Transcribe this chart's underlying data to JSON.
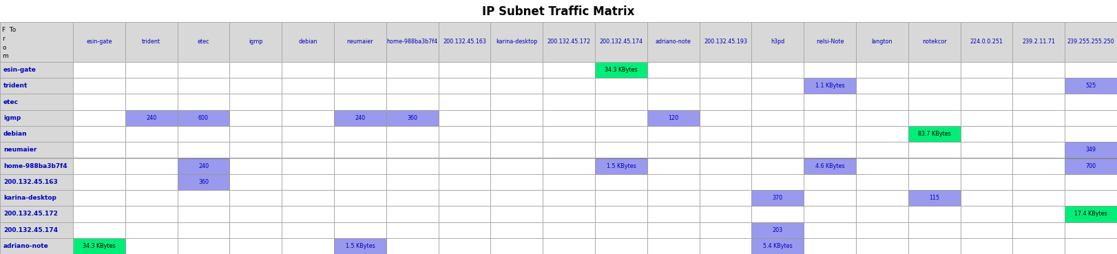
{
  "title": "IP Subnet Traffic Matrix",
  "title_fontsize": 12,
  "col_headers": [
    "esin-gate",
    "trident",
    "etec",
    "igmp",
    "debian",
    "neumaier",
    "home-988ba3b7f4",
    "200.132.45.163",
    "karina-desktop",
    "200.132.45.172",
    "200.132.45.174",
    "adriano-note",
    "200.132.45.193",
    "h3pd",
    "nelsi-Note",
    "langton",
    "notekcor",
    "224.0.0.251",
    "239.2.11.71",
    "239.255.255.250"
  ],
  "row_headers": [
    "esin-gate",
    "trident",
    "etec",
    "igmp",
    "debian",
    "neumaier",
    "home-988ba3b7f4",
    "200.132.45.163",
    "karina-desktop",
    "200.132.45.172",
    "200.132.45.174",
    "adriano-note"
  ],
  "cells": {
    "esin-gate": {
      "200.132.45.174": {
        "text": "34.3 KBytes",
        "color": "#00ee77"
      }
    },
    "trident": {
      "nelsi-Note": {
        "text": "1.1 KBytes",
        "color": "#9999ee"
      },
      "239.255.255.250": {
        "text": "525",
        "color": "#9999ee"
      }
    },
    "etec": {},
    "igmp": {
      "trident": {
        "text": "240",
        "color": "#9999ee"
      },
      "etec": {
        "text": "600",
        "color": "#9999ee"
      },
      "neumaier": {
        "text": "240",
        "color": "#9999ee"
      },
      "home-988ba3b7f4": {
        "text": "360",
        "color": "#9999ee"
      },
      "adriano-note": {
        "text": "120",
        "color": "#9999ee"
      }
    },
    "debian": {
      "notekcor": {
        "text": "83.7 KBytes",
        "color": "#00ee77"
      }
    },
    "neumaier": {
      "239.255.255.250": {
        "text": "349",
        "color": "#9999ee"
      }
    },
    "home-988ba3b7f4": {
      "etec": {
        "text": "240",
        "color": "#9999ee"
      },
      "200.132.45.174": {
        "text": "1.5 KBytes",
        "color": "#9999ee"
      },
      "nelsi-Note": {
        "text": "4.6 KBytes",
        "color": "#9999ee"
      },
      "239.255.255.250": {
        "text": "700",
        "color": "#9999ee"
      }
    },
    "200.132.45.163": {
      "etec": {
        "text": "360",
        "color": "#9999ee"
      }
    },
    "karina-desktop": {
      "h3pd": {
        "text": "370",
        "color": "#9999ee"
      },
      "notekcor": {
        "text": "115",
        "color": "#9999ee"
      }
    },
    "200.132.45.172": {
      "239.255.255.250": {
        "text": "17.4 KBytes",
        "color": "#00ee77"
      }
    },
    "200.132.45.174": {
      "h3pd": {
        "text": "203",
        "color": "#9999ee"
      }
    },
    "adriano-note": {
      "esin-gate": {
        "text": "34.3 KBytes",
        "color": "#00ee77"
      },
      "neumaier": {
        "text": "1.5 KBytes",
        "color": "#9999ee"
      },
      "h3pd": {
        "text": "5.4 KBytes",
        "color": "#9999ee"
      }
    }
  },
  "bg_header": "#d8d8d8",
  "bg_cell_empty": "#ffffff",
  "text_color_blue": "#0000bb",
  "fig_width": 16.22,
  "fig_height": 3.69
}
